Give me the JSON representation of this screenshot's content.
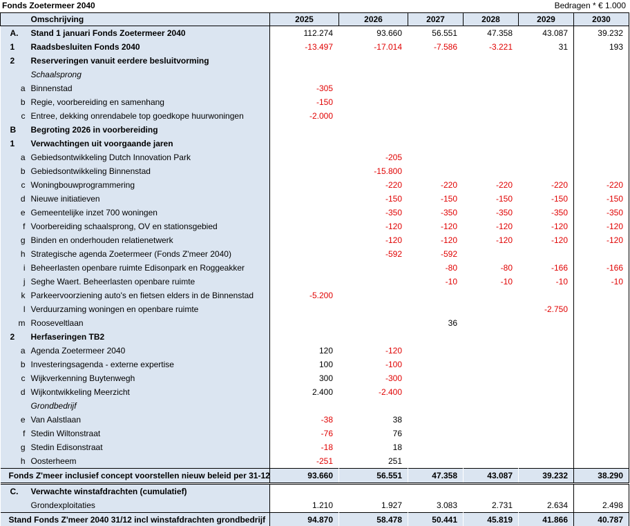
{
  "header": {
    "title": "Fonds Zoetermeer 2040",
    "unit": "Bedragen * € 1.000"
  },
  "table": {
    "columns": [
      "Omschrijving",
      "2025",
      "2026",
      "2027",
      "2028",
      "2029",
      "2030"
    ],
    "rows": [
      {
        "code": "A.",
        "label": "Stand 1 januari Fonds Zoetermeer 2040",
        "style": "bold",
        "values": [
          "112.274",
          "93.660",
          "56.551",
          "47.358",
          "43.087",
          "39.232"
        ]
      },
      {
        "code": "1",
        "label": "Raadsbesluiten Fonds 2040",
        "style": "bold",
        "values": [
          "-13.497",
          "-17.014",
          "-7.586",
          "-3.221",
          "31",
          "193"
        ]
      },
      {
        "code": "2",
        "label": "Reserveringen vanuit eerdere besluitvorming",
        "style": "bold",
        "values": [
          null,
          null,
          null,
          null,
          null,
          null
        ]
      },
      {
        "code": null,
        "label": "Schaalsprong",
        "style": "italic",
        "values": [
          null,
          null,
          null,
          null,
          null,
          null
        ]
      },
      {
        "code": "a",
        "label": "Binnenstad",
        "style": "item",
        "values": [
          "-305",
          null,
          null,
          null,
          null,
          null
        ]
      },
      {
        "code": "b",
        "label": "Regie, voorbereiding en samenhang",
        "style": "item",
        "values": [
          "-150",
          null,
          null,
          null,
          null,
          null
        ]
      },
      {
        "code": "c",
        "label": "Entree, dekking onrendabele top goedkope huurwoningen",
        "style": "item",
        "values": [
          "-2.000",
          null,
          null,
          null,
          null,
          null
        ]
      },
      {
        "code": "B",
        "label": "Begroting 2026 in voorbereiding",
        "style": "bold",
        "values": [
          null,
          null,
          null,
          null,
          null,
          null
        ]
      },
      {
        "code": "1",
        "label": "Verwachtingen uit voorgaande jaren",
        "style": "bold",
        "values": [
          null,
          null,
          null,
          null,
          null,
          null
        ]
      },
      {
        "code": "a",
        "label": "Gebiedsontwikkeling Dutch Innovation Park",
        "style": "item",
        "values": [
          null,
          "-205",
          null,
          null,
          null,
          null
        ]
      },
      {
        "code": "b",
        "label": "Gebiedsontwikkeling Binnenstad",
        "style": "item",
        "values": [
          null,
          "-15.800",
          null,
          null,
          null,
          null
        ]
      },
      {
        "code": "c",
        "label": "Woningbouwprogrammering",
        "style": "item",
        "values": [
          null,
          "-220",
          "-220",
          "-220",
          "-220",
          "-220"
        ]
      },
      {
        "code": "d",
        "label": "Nieuwe initiatieven",
        "style": "item",
        "values": [
          null,
          "-150",
          "-150",
          "-150",
          "-150",
          "-150"
        ]
      },
      {
        "code": "e",
        "label": "Gemeentelijke inzet 700 woningen",
        "style": "item",
        "values": [
          null,
          "-350",
          "-350",
          "-350",
          "-350",
          "-350"
        ]
      },
      {
        "code": "f",
        "label": "Voorbereiding schaalsprong, OV en stationsgebied",
        "style": "item",
        "values": [
          null,
          "-120",
          "-120",
          "-120",
          "-120",
          "-120"
        ]
      },
      {
        "code": "g",
        "label": "Binden en onderhouden relatienetwerk",
        "style": "item",
        "values": [
          null,
          "-120",
          "-120",
          "-120",
          "-120",
          "-120"
        ]
      },
      {
        "code": "h",
        "label": "Strategische agenda Zoetermeer (Fonds Z'meer 2040)",
        "style": "item",
        "values": [
          null,
          "-592",
          "-592",
          null,
          null,
          null
        ]
      },
      {
        "code": "i",
        "label": "Beheerlasten openbare ruimte Edisonpark en Roggeakker",
        "style": "item",
        "values": [
          null,
          null,
          "-80",
          "-80",
          "-166",
          "-166"
        ]
      },
      {
        "code": "j",
        "label": "Seghe Waert. Beheerlasten openbare ruimte",
        "style": "item",
        "values": [
          null,
          null,
          "-10",
          "-10",
          "-10",
          "-10"
        ]
      },
      {
        "code": "k",
        "label": "Parkeervoorziening auto's en fietsen elders in de Binnenstad",
        "style": "item",
        "values": [
          "-5.200",
          null,
          null,
          null,
          null,
          null
        ]
      },
      {
        "code": "l",
        "label": "Verduurzaming woningen en openbare ruimte",
        "style": "item",
        "values": [
          null,
          null,
          null,
          null,
          "-2.750",
          null
        ]
      },
      {
        "code": "m",
        "label": "Rooseveltlaan",
        "style": "item",
        "values": [
          null,
          null,
          "36",
          null,
          null,
          null
        ]
      },
      {
        "code": "2",
        "label": "Herfaseringen TB2",
        "style": "bold",
        "values": [
          null,
          null,
          null,
          null,
          null,
          null
        ]
      },
      {
        "code": "a",
        "label": "Agenda Zoetermeer 2040",
        "style": "item",
        "values": [
          "120",
          "-120",
          null,
          null,
          null,
          null
        ]
      },
      {
        "code": "b",
        "label": "Investeringsagenda - externe expertise",
        "style": "item",
        "values": [
          "100",
          "-100",
          null,
          null,
          null,
          null
        ]
      },
      {
        "code": "c",
        "label": "Wijkverkenning Buytenwegh",
        "style": "item",
        "values": [
          "300",
          "-300",
          null,
          null,
          null,
          null
        ]
      },
      {
        "code": "d",
        "label": "Wijkontwikkeling Meerzicht",
        "style": "item",
        "values": [
          "2.400",
          "-2.400",
          null,
          null,
          null,
          null
        ]
      },
      {
        "code": null,
        "label": "Grondbedrijf",
        "style": "italic",
        "values": [
          null,
          null,
          null,
          null,
          null,
          null
        ]
      },
      {
        "code": "e",
        "label": "Van Aalstlaan",
        "style": "item",
        "values": [
          "-38",
          "38",
          null,
          null,
          null,
          null
        ]
      },
      {
        "code": "f",
        "label": "Stedin Wiltonstraat",
        "style": "item",
        "values": [
          "-76",
          "76",
          null,
          null,
          null,
          null
        ]
      },
      {
        "code": "g",
        "label": "Stedin Edisonstraat",
        "style": "item",
        "values": [
          "-18",
          "18",
          null,
          null,
          null,
          null
        ]
      },
      {
        "code": "h",
        "label": "Oosterheem",
        "style": "item",
        "values": [
          "-251",
          "251",
          null,
          null,
          null,
          null
        ]
      },
      {
        "code": null,
        "label": "Fonds Z'meer inclusief concept voorstellen nieuw beleid per 31-12",
        "style": "summary",
        "values": [
          "93.660",
          "56.551",
          "47.358",
          "43.087",
          "39.232",
          "38.290"
        ]
      },
      {
        "code": "C.",
        "label": "Verwachte winstafdrachten (cumulatief)",
        "style": "bold",
        "values": [
          null,
          null,
          null,
          null,
          null,
          null
        ]
      },
      {
        "code": null,
        "label": "Grondexploitaties",
        "style": "item",
        "values": [
          "1.210",
          "1.927",
          "3.083",
          "2.731",
          "2.634",
          "2.498"
        ]
      },
      {
        "code": null,
        "label": "Stand Fonds Z'meer 2040 31/12 incl winstafdrachten grondbedrijf",
        "style": "summary",
        "values": [
          "94.870",
          "58.478",
          "50.441",
          "45.819",
          "41.866",
          "40.787"
        ]
      }
    ]
  }
}
